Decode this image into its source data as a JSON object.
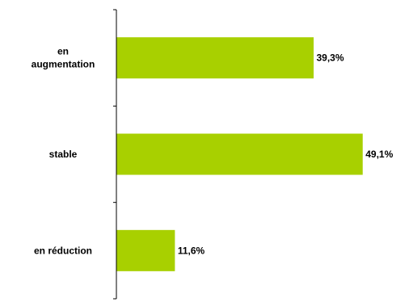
{
  "chart_data": {
    "type": "bar",
    "orientation": "horizontal",
    "title": "",
    "xlabel": "",
    "ylabel": "",
    "categories": [
      [
        "en",
        "augmentation"
      ],
      [
        "stable"
      ],
      [
        "en réduction"
      ]
    ],
    "values": [
      39.3,
      49.1,
      11.6
    ],
    "value_labels": [
      "39,3%",
      "49,1%",
      "11,6%"
    ],
    "xlim": [
      0,
      51
    ],
    "grid": false,
    "legend": "none",
    "bar_color": "#a8d000"
  }
}
